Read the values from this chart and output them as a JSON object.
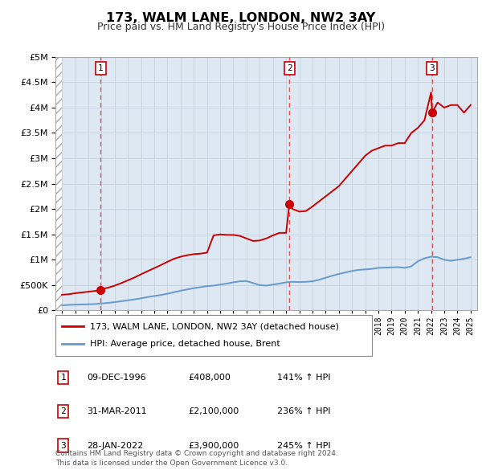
{
  "title": "173, WALM LANE, LONDON, NW2 3AY",
  "subtitle": "Price paid vs. HM Land Registry's House Price Index (HPI)",
  "legend_line1": "173, WALM LANE, LONDON, NW2 3AY (detached house)",
  "legend_line2": "HPI: Average price, detached house, Brent",
  "footer1": "Contains HM Land Registry data © Crown copyright and database right 2024.",
  "footer2": "This data is licensed under the Open Government Licence v3.0.",
  "transactions": [
    {
      "num": 1,
      "date": "09-DEC-1996",
      "price": 408000,
      "pct": "141% ↑ HPI",
      "year": 1996.92
    },
    {
      "num": 2,
      "date": "31-MAR-2011",
      "price": 2100000,
      "pct": "236% ↑ HPI",
      "year": 2011.25
    },
    {
      "num": 3,
      "date": "28-JAN-2022",
      "price": 3900000,
      "pct": "245% ↑ HPI",
      "year": 2022.08
    }
  ],
  "red_line_color": "#cc0000",
  "blue_line_color": "#6699cc",
  "grid_color": "#c8d4e0",
  "vline_color": "#dd4444",
  "box_color": "#cc0000",
  "ylim": [
    0,
    5000000
  ],
  "xlim_start": 1993.5,
  "xlim_end": 2025.5,
  "bg_color": "#dde8f3",
  "hpi_data_years": [
    1994.0,
    1994.5,
    1995.0,
    1995.5,
    1996.0,
    1996.5,
    1997.0,
    1997.5,
    1998.0,
    1998.5,
    1999.0,
    1999.5,
    2000.0,
    2000.5,
    2001.0,
    2001.5,
    2002.0,
    2002.5,
    2003.0,
    2003.5,
    2004.0,
    2004.5,
    2005.0,
    2005.5,
    2006.0,
    2006.5,
    2007.0,
    2007.5,
    2008.0,
    2008.5,
    2009.0,
    2009.5,
    2010.0,
    2010.5,
    2011.0,
    2011.5,
    2012.0,
    2012.5,
    2013.0,
    2013.5,
    2014.0,
    2014.5,
    2015.0,
    2015.5,
    2016.0,
    2016.5,
    2017.0,
    2017.5,
    2018.0,
    2018.5,
    2019.0,
    2019.5,
    2020.0,
    2020.5,
    2021.0,
    2021.5,
    2022.0,
    2022.5,
    2023.0,
    2023.5,
    2024.0,
    2024.5,
    2025.0
  ],
  "hpi_data_values": [
    100000,
    110000,
    115000,
    118000,
    122000,
    128000,
    138000,
    150000,
    165000,
    182000,
    200000,
    218000,
    240000,
    265000,
    285000,
    305000,
    330000,
    360000,
    390000,
    415000,
    440000,
    460000,
    480000,
    490000,
    510000,
    530000,
    555000,
    575000,
    580000,
    540000,
    500000,
    490000,
    510000,
    530000,
    555000,
    565000,
    560000,
    565000,
    575000,
    605000,
    645000,
    685000,
    720000,
    750000,
    780000,
    800000,
    810000,
    820000,
    840000,
    845000,
    850000,
    855000,
    840000,
    870000,
    970000,
    1030000,
    1060000,
    1050000,
    1000000,
    980000,
    1000000,
    1020000,
    1050000
  ],
  "red_line_years": [
    1994.0,
    1994.5,
    1995.0,
    1995.5,
    1996.0,
    1996.5,
    1996.92,
    1997.0,
    1997.5,
    1998.0,
    1998.5,
    1999.0,
    1999.5,
    2000.0,
    2000.5,
    2001.0,
    2001.5,
    2002.0,
    2002.5,
    2003.0,
    2003.5,
    2004.0,
    2004.5,
    2005.0,
    2005.5,
    2006.0,
    2006.5,
    2007.0,
    2007.5,
    2008.0,
    2008.5,
    2009.0,
    2009.5,
    2010.0,
    2010.5,
    2011.0,
    2011.25,
    2011.5,
    2012.0,
    2012.5,
    2013.0,
    2013.5,
    2014.0,
    2014.5,
    2015.0,
    2015.5,
    2016.0,
    2016.5,
    2017.0,
    2017.5,
    2018.0,
    2018.5,
    2019.0,
    2019.5,
    2020.0,
    2020.5,
    2021.0,
    2021.5,
    2022.0,
    2022.08,
    2022.5,
    2023.0,
    2023.5,
    2024.0,
    2024.5,
    2025.0
  ],
  "red_line_values": [
    310000,
    320000,
    340000,
    355000,
    370000,
    385000,
    408000,
    420000,
    450000,
    490000,
    540000,
    595000,
    650000,
    715000,
    775000,
    835000,
    895000,
    960000,
    1020000,
    1060000,
    1090000,
    1110000,
    1120000,
    1140000,
    1480000,
    1500000,
    1490000,
    1490000,
    1470000,
    1420000,
    1370000,
    1380000,
    1420000,
    1480000,
    1530000,
    1530000,
    2100000,
    2000000,
    1950000,
    1960000,
    2050000,
    2150000,
    2250000,
    2350000,
    2450000,
    2600000,
    2750000,
    2900000,
    3050000,
    3150000,
    3200000,
    3250000,
    3250000,
    3300000,
    3300000,
    3500000,
    3600000,
    3750000,
    4300000,
    3900000,
    4100000,
    4000000,
    4050000,
    4050000,
    3900000,
    4050000
  ]
}
